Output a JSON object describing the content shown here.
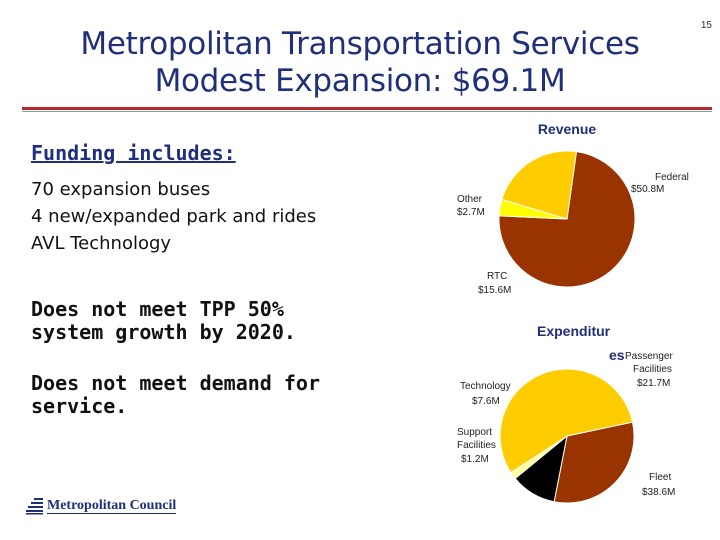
{
  "slide_number": "15",
  "title": {
    "line1": "Metropolitan Transportation Services",
    "line2": "Modest Expansion: $69.1M"
  },
  "funding": {
    "heading": "Funding includes:",
    "items": [
      "70 expansion buses",
      "4 new/expanded park and rides",
      "AVL Technology"
    ]
  },
  "notes": [
    {
      "line1": "Does not meet TPP 50%",
      "line2": "system growth by 2020."
    },
    {
      "line1": "Does not meet demand for",
      "line2": "service."
    }
  ],
  "logo": {
    "text": "Metropolitan Council",
    "icon": "metropolitan-council-logo-icon"
  },
  "colors": {
    "title": "#1f2f7a",
    "rule": "#b3282d",
    "federal": "#993300",
    "other": "#ffff00",
    "rtc": "#ffcc00",
    "passenger": "#993300",
    "technology": "#000000",
    "support": "#ffff99",
    "fleet": "#ffcc00"
  },
  "chart_data": [
    {
      "type": "pie",
      "title": "Revenue",
      "slices": [
        {
          "label": "Federal",
          "value_label": "$50.8M",
          "value": 50.8
        },
        {
          "label": "Other",
          "value_label": "$2.7M",
          "value": 2.7
        },
        {
          "label": "RTC",
          "value_label": "$15.6M",
          "value": 15.6
        }
      ]
    },
    {
      "type": "pie",
      "title_line1": "Expenditur",
      "title_line2": "es",
      "slices": [
        {
          "label_line1": "Passenger",
          "label_line2": "Facilities",
          "value_label": "$21.7M",
          "value": 21.7
        },
        {
          "label": "Technology",
          "value_label": "$7.6M",
          "value": 7.6
        },
        {
          "label_line1": "Support",
          "label_line2": "Facilities",
          "value_label": "$1.2M",
          "value": 1.2
        },
        {
          "label": "Fleet",
          "value_label": "$38.6M",
          "value": 38.6
        }
      ]
    }
  ]
}
